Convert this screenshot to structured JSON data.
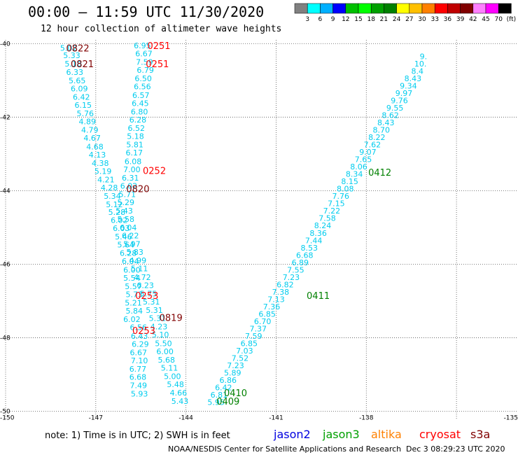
{
  "header": {
    "title": "00:00 – 11:59 UTC 11/30/2020",
    "subtitle": "12 hour collection of altimeter wave heights"
  },
  "colorbar": {
    "colors": [
      "#808080",
      "#00ffff",
      "#00b0ff",
      "#0000ff",
      "#00c000",
      "#00ff00",
      "#00a000",
      "#008000",
      "#ffff00",
      "#ffc000",
      "#ff8000",
      "#ff0000",
      "#c00000",
      "#800000",
      "#ff80ff",
      "#ff00ff",
      "#000000"
    ],
    "labels": [
      "3",
      "6",
      "9",
      "12",
      "15",
      "18",
      "21",
      "24",
      "27",
      "30",
      "33",
      "36",
      "39",
      "42",
      "45",
      "70",
      "(ft)"
    ]
  },
  "note": "note:  1) Time is in UTC;  2) SWH is in feet",
  "satellites": [
    {
      "name": "jason2",
      "color": "#0000e0"
    },
    {
      "name": "jason3",
      "color": "#00a000"
    },
    {
      "name": "altika",
      "color": "#ff8000"
    },
    {
      "name": "cryosat",
      "color": "#ff0000"
    },
    {
      "name": "s3a",
      "color": "#800000"
    }
  ],
  "footer": {
    "credit": "NOAA/NESDIS Center for Satellite Applications and Research",
    "stamp": "Dec  3 08:29:23 UTC 2020"
  },
  "chart_data": {
    "type": "scatter",
    "xlim": [
      -150,
      -133
    ],
    "ylim": [
      -50.2,
      -39.9
    ],
    "x_ticks": [
      "-150",
      "-147",
      "-144",
      "-141",
      "-138",
      "-135"
    ],
    "y_ticks": [
      "-40",
      "-42",
      "-44",
      "-46",
      "-48",
      "-50"
    ],
    "series": [
      {
        "name": "",
        "color": "#00ccee",
        "points": [
          {
            "x": -147.9,
            "y": -40.12,
            "v": "5.02"
          },
          {
            "x": -147.8,
            "y": -40.32,
            "v": "5.33"
          },
          {
            "x": -147.75,
            "y": -40.55,
            "v": "5.10"
          },
          {
            "x": -147.7,
            "y": -40.78,
            "v": "6.33"
          },
          {
            "x": -147.62,
            "y": -41.0,
            "v": "5.65"
          },
          {
            "x": -147.55,
            "y": -41.22,
            "v": "6.09"
          },
          {
            "x": -147.48,
            "y": -41.45,
            "v": "6.42"
          },
          {
            "x": -147.42,
            "y": -41.67,
            "v": "6.15"
          },
          {
            "x": -147.35,
            "y": -41.9,
            "v": "5.76"
          },
          {
            "x": -147.28,
            "y": -42.12,
            "v": "4.89"
          },
          {
            "x": -147.2,
            "y": -42.35,
            "v": "4.79"
          },
          {
            "x": -147.12,
            "y": -42.57,
            "v": "4.67"
          },
          {
            "x": -147.03,
            "y": -42.8,
            "v": "4.68"
          },
          {
            "x": -146.95,
            "y": -43.02,
            "v": "4.13"
          },
          {
            "x": -146.85,
            "y": -43.25,
            "v": "4.38"
          },
          {
            "x": -146.76,
            "y": -43.47,
            "v": "5.19"
          },
          {
            "x": -146.66,
            "y": -43.7,
            "v": "4.21"
          },
          {
            "x": -146.55,
            "y": -43.92,
            "v": "4.28"
          },
          {
            "x": -146.45,
            "y": -44.15,
            "v": "5.34"
          },
          {
            "x": -146.38,
            "y": -44.37,
            "v": "5.12"
          },
          {
            "x": -146.3,
            "y": -44.58,
            "v": "5.28"
          },
          {
            "x": -146.22,
            "y": -44.8,
            "v": "6.02"
          },
          {
            "x": -146.15,
            "y": -45.02,
            "v": "6.03"
          },
          {
            "x": -146.08,
            "y": -45.25,
            "v": "5.46"
          },
          {
            "x": -146.0,
            "y": -45.47,
            "v": "5.64"
          },
          {
            "x": -145.92,
            "y": -45.7,
            "v": "6.28"
          },
          {
            "x": -145.85,
            "y": -45.92,
            "v": "6.04"
          },
          {
            "x": -145.8,
            "y": -46.15,
            "v": "6.00"
          },
          {
            "x": -145.8,
            "y": -46.37,
            "v": "5.54"
          },
          {
            "x": -145.75,
            "y": -46.6,
            "v": "5.57"
          },
          {
            "x": -145.72,
            "y": -46.82,
            "v": "5.73"
          },
          {
            "x": -145.75,
            "y": -47.05,
            "v": "5.21"
          },
          {
            "x": -145.72,
            "y": -47.27,
            "v": "5.84"
          },
          {
            "x": -145.8,
            "y": -47.5,
            "v": "6.02"
          },
          {
            "x": -145.58,
            "y": -47.72,
            "v": "6.56"
          },
          {
            "x": -145.55,
            "y": -47.95,
            "v": "6.43"
          },
          {
            "x": -145.52,
            "y": -48.17,
            "v": "6.29"
          },
          {
            "x": -145.58,
            "y": -48.4,
            "v": "6.67"
          },
          {
            "x": -145.55,
            "y": -48.62,
            "v": "7.10"
          },
          {
            "x": -145.6,
            "y": -48.85,
            "v": "6.77"
          },
          {
            "x": -145.6,
            "y": -49.07,
            "v": "6.68"
          },
          {
            "x": -145.58,
            "y": -49.3,
            "v": "7.49"
          },
          {
            "x": -145.55,
            "y": -49.52,
            "v": "5.93"
          },
          {
            "x": -145.45,
            "y": -40.05,
            "v": "6.95"
          },
          {
            "x": -145.4,
            "y": -40.27,
            "v": "6.67"
          },
          {
            "x": -145.38,
            "y": -40.5,
            "v": "7.59"
          },
          {
            "x": -145.35,
            "y": -40.72,
            "v": "6.79"
          },
          {
            "x": -145.42,
            "y": -40.95,
            "v": "6.50"
          },
          {
            "x": -145.45,
            "y": -41.17,
            "v": "6.56"
          },
          {
            "x": -145.5,
            "y": -41.4,
            "v": "6.57"
          },
          {
            "x": -145.52,
            "y": -41.62,
            "v": "6.45"
          },
          {
            "x": -145.55,
            "y": -41.85,
            "v": "6.80"
          },
          {
            "x": -145.6,
            "y": -42.07,
            "v": "6.28"
          },
          {
            "x": -145.65,
            "y": -42.3,
            "v": "6.52"
          },
          {
            "x": -145.68,
            "y": -42.52,
            "v": "5.18"
          },
          {
            "x": -145.7,
            "y": -42.75,
            "v": "5.81"
          },
          {
            "x": -145.72,
            "y": -42.97,
            "v": "6.17"
          },
          {
            "x": -145.76,
            "y": -43.2,
            "v": "6.08"
          },
          {
            "x": -145.8,
            "y": -43.42,
            "v": "7.00"
          },
          {
            "x": -145.85,
            "y": -43.65,
            "v": "6.31"
          },
          {
            "x": -145.9,
            "y": -43.87,
            "v": "6.02"
          },
          {
            "x": -145.95,
            "y": -44.1,
            "v": "5.71"
          },
          {
            "x": -146.0,
            "y": -44.32,
            "v": "5.29"
          },
          {
            "x": -146.05,
            "y": -44.55,
            "v": "5.43"
          },
          {
            "x": -146.0,
            "y": -44.77,
            "v": "5.58"
          },
          {
            "x": -145.92,
            "y": -45.0,
            "v": "6.04"
          },
          {
            "x": -145.85,
            "y": -45.22,
            "v": "6.22"
          },
          {
            "x": -145.8,
            "y": -45.45,
            "v": "5.97"
          },
          {
            "x": -145.7,
            "y": -45.67,
            "v": "5.83"
          },
          {
            "x": -145.6,
            "y": -45.9,
            "v": "4.99"
          },
          {
            "x": -145.55,
            "y": -46.12,
            "v": "5.11"
          },
          {
            "x": -145.45,
            "y": -46.35,
            "v": "4.72"
          },
          {
            "x": -145.35,
            "y": -46.57,
            "v": "6.23"
          },
          {
            "x": -145.25,
            "y": -46.8,
            "v": "5.75"
          },
          {
            "x": -145.15,
            "y": -47.02,
            "v": "5.31"
          },
          {
            "x": -145.05,
            "y": -47.25,
            "v": "5.31"
          },
          {
            "x": -144.95,
            "y": -47.47,
            "v": "5.31"
          },
          {
            "x": -144.9,
            "y": -47.7,
            "v": "4.23"
          },
          {
            "x": -144.85,
            "y": -47.92,
            "v": "5.10"
          },
          {
            "x": -144.75,
            "y": -48.15,
            "v": "5.50"
          },
          {
            "x": -144.7,
            "y": -48.37,
            "v": "6.00"
          },
          {
            "x": -144.65,
            "y": -48.6,
            "v": "5.68"
          },
          {
            "x": -144.55,
            "y": -48.82,
            "v": "5.11"
          },
          {
            "x": -144.45,
            "y": -49.05,
            "v": "5.00"
          },
          {
            "x": -144.35,
            "y": -49.27,
            "v": "5.48"
          },
          {
            "x": -144.25,
            "y": -49.5,
            "v": "4.66"
          },
          {
            "x": -144.2,
            "y": -49.72,
            "v": "5.43"
          },
          {
            "x": -143.0,
            "y": -49.75,
            "v": "5.95"
          },
          {
            "x": -142.9,
            "y": -49.55,
            "v": "6.81"
          },
          {
            "x": -142.75,
            "y": -49.35,
            "v": "6.42"
          },
          {
            "x": -142.6,
            "y": -49.15,
            "v": "6.86"
          },
          {
            "x": -142.45,
            "y": -48.95,
            "v": "5.89"
          },
          {
            "x": -142.35,
            "y": -48.75,
            "v": "7.23"
          },
          {
            "x": -142.2,
            "y": -48.55,
            "v": "7.52"
          },
          {
            "x": -142.05,
            "y": -48.35,
            "v": "7.03"
          },
          {
            "x": -141.9,
            "y": -48.15,
            "v": "6.85"
          },
          {
            "x": -141.75,
            "y": -47.95,
            "v": "7.59"
          },
          {
            "x": -141.6,
            "y": -47.75,
            "v": "7.37"
          },
          {
            "x": -141.45,
            "y": -47.55,
            "v": "6.70"
          },
          {
            "x": -141.3,
            "y": -47.35,
            "v": "6.85"
          },
          {
            "x": -141.15,
            "y": -47.15,
            "v": "7.36"
          },
          {
            "x": -141.0,
            "y": -46.95,
            "v": "7.13"
          },
          {
            "x": -140.85,
            "y": -46.75,
            "v": "7.38"
          },
          {
            "x": -140.7,
            "y": -46.55,
            "v": "6.82"
          },
          {
            "x": -140.5,
            "y": -46.35,
            "v": "7.23"
          },
          {
            "x": -140.35,
            "y": -46.15,
            "v": "7.55"
          },
          {
            "x": -140.2,
            "y": -45.95,
            "v": "6.89"
          },
          {
            "x": -140.05,
            "y": -45.75,
            "v": "6.68"
          },
          {
            "x": -139.9,
            "y": -45.55,
            "v": "8.53"
          },
          {
            "x": -139.75,
            "y": -45.35,
            "v": "7.44"
          },
          {
            "x": -139.6,
            "y": -45.15,
            "v": "8.36"
          },
          {
            "x": -139.45,
            "y": -44.95,
            "v": "8.24"
          },
          {
            "x": -139.3,
            "y": -44.75,
            "v": "7.58"
          },
          {
            "x": -139.15,
            "y": -44.55,
            "v": "7.22"
          },
          {
            "x": -139.0,
            "y": -44.35,
            "v": "7.15"
          },
          {
            "x": -138.85,
            "y": -44.15,
            "v": "7.76"
          },
          {
            "x": -138.7,
            "y": -43.95,
            "v": "8.08"
          },
          {
            "x": -138.55,
            "y": -43.75,
            "v": "8.15"
          },
          {
            "x": -138.4,
            "y": -43.55,
            "v": "8.34"
          },
          {
            "x": -138.25,
            "y": -43.35,
            "v": "8.06"
          },
          {
            "x": -138.1,
            "y": -43.15,
            "v": "7.65"
          },
          {
            "x": -137.95,
            "y": -42.95,
            "v": "9.07"
          },
          {
            "x": -137.8,
            "y": -42.75,
            "v": "7.62"
          },
          {
            "x": -137.65,
            "y": -42.55,
            "v": "8.22"
          },
          {
            "x": -137.5,
            "y": -42.35,
            "v": "8.70"
          },
          {
            "x": -137.35,
            "y": -42.15,
            "v": "8.43"
          },
          {
            "x": -137.2,
            "y": -41.95,
            "v": "8.62"
          },
          {
            "x": -137.05,
            "y": -41.75,
            "v": "9.55"
          },
          {
            "x": -136.9,
            "y": -41.55,
            "v": "9.76"
          },
          {
            "x": -136.75,
            "y": -41.35,
            "v": "9.97"
          },
          {
            "x": -136.6,
            "y": -41.15,
            "v": "9.34"
          },
          {
            "x": -136.45,
            "y": -40.95,
            "v": "8.43"
          },
          {
            "x": -136.3,
            "y": -40.75,
            "v": "8.4"
          },
          {
            "x": -136.2,
            "y": -40.55,
            "v": "10."
          },
          {
            "x": -136.1,
            "y": -40.35,
            "v": "9."
          }
        ]
      }
    ],
    "times": [
      {
        "x": -147.6,
        "y": -40.12,
        "label": "0822",
        "color": "#800000"
      },
      {
        "x": -147.45,
        "y": -40.55,
        "label": "0821",
        "color": "#800000"
      },
      {
        "x": -144.9,
        "y": -40.05,
        "label": "0251",
        "color": "#ff0000"
      },
      {
        "x": -144.95,
        "y": -40.55,
        "label": "0251",
        "color": "#ff0000"
      },
      {
        "x": -145.05,
        "y": -43.45,
        "label": "0252",
        "color": "#ff0000"
      },
      {
        "x": -145.6,
        "y": -43.95,
        "label": "0820",
        "color": "#800000"
      },
      {
        "x": -145.3,
        "y": -46.85,
        "label": "0253",
        "color": "#ff0000"
      },
      {
        "x": -144.5,
        "y": -47.45,
        "label": "0819",
        "color": "#800000"
      },
      {
        "x": -145.4,
        "y": -47.8,
        "label": "0253",
        "color": "#ff0000"
      },
      {
        "x": -137.55,
        "y": -43.5,
        "label": "0412",
        "color": "#008000"
      },
      {
        "x": -139.6,
        "y": -46.85,
        "label": "0411",
        "color": "#008000"
      },
      {
        "x": -142.35,
        "y": -49.5,
        "label": "0410",
        "color": "#008000"
      },
      {
        "x": -142.6,
        "y": -49.72,
        "label": "0409",
        "color": "#008000"
      }
    ]
  }
}
